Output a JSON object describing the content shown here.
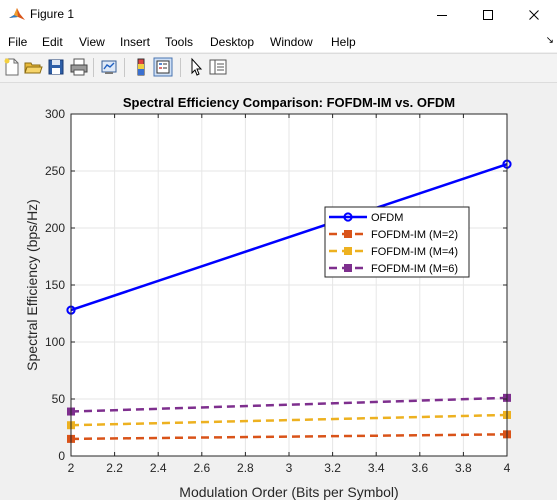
{
  "window": {
    "title": "Figure 1",
    "controls": [
      "minimize",
      "maximize",
      "close"
    ]
  },
  "menu": {
    "items": [
      "File",
      "Edit",
      "View",
      "Insert",
      "Tools",
      "Desktop",
      "Window",
      "Help"
    ]
  },
  "toolbar": {
    "icons": [
      "new-figure-icon",
      "open-file-icon",
      "save-icon",
      "print-icon",
      "link-plot-icon",
      "colorbar-icon",
      "legend-icon",
      "edit-plot-icon",
      "property-inspector-icon"
    ]
  },
  "colors": {
    "ofdm": "#0000ff",
    "m2": "#d95319",
    "m4": "#edb120",
    "m6": "#7e2f8e"
  },
  "chart_data": {
    "type": "line",
    "title": "Spectral Efficiency Comparison: FOFDM-IM vs. OFDM",
    "xlabel": "Modulation Order (Bits per Symbol)",
    "ylabel": "Spectral Efficiency (bps/Hz)",
    "xlim": [
      2,
      4
    ],
    "ylim": [
      0,
      300
    ],
    "xticks": [
      "2",
      "2.2",
      "2.4",
      "2.6",
      "2.8",
      "3",
      "3.2",
      "3.4",
      "3.6",
      "3.8",
      "4"
    ],
    "yticks": [
      "0",
      "50",
      "100",
      "150",
      "200",
      "250",
      "300"
    ],
    "grid": true,
    "legend_position": "center-right",
    "series": [
      {
        "name": "OFDM",
        "color": "#0000ff",
        "style": "solid",
        "marker": "circle",
        "x": [
          2,
          4
        ],
        "y": [
          128,
          256
        ]
      },
      {
        "name": "FOFDM-IM (M=2)",
        "color": "#d95319",
        "style": "dashed",
        "marker": "square",
        "x": [
          2,
          4
        ],
        "y": [
          15,
          19
        ]
      },
      {
        "name": "FOFDM-IM (M=4)",
        "color": "#edb120",
        "style": "dashed",
        "marker": "square",
        "x": [
          2,
          4
        ],
        "y": [
          27,
          36
        ]
      },
      {
        "name": "FOFDM-IM (M=6)",
        "color": "#7e2f8e",
        "style": "dashed",
        "marker": "square",
        "x": [
          2,
          4
        ],
        "y": [
          39,
          51
        ]
      }
    ]
  }
}
